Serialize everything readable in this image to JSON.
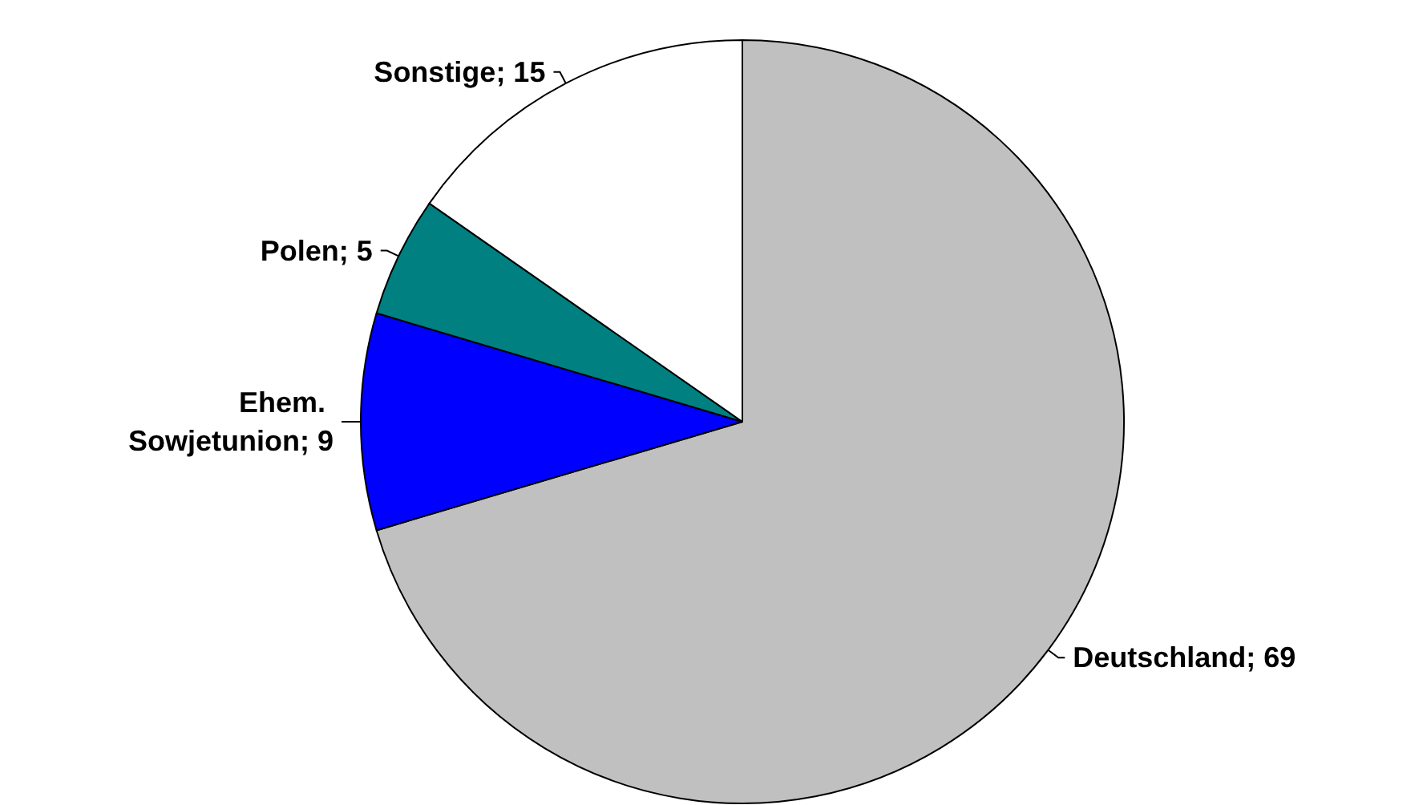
{
  "chart_data": {
    "type": "pie",
    "categories": [
      "Deutschland; 69",
      "Ehem. Sowjetunion; 9",
      "Polen; 5",
      "Sonstige; 15"
    ],
    "values": [
      69,
      9,
      5,
      15
    ],
    "colors": [
      "#c0c0c0",
      "#0000ff",
      "#008080",
      "#ffffff"
    ]
  }
}
